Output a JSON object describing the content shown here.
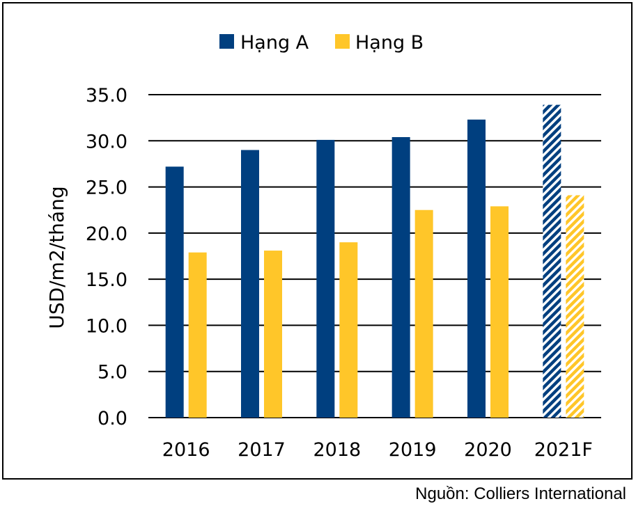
{
  "chart_data": {
    "type": "bar",
    "categories": [
      "2016",
      "2017",
      "2018",
      "2019",
      "2020",
      "2021F"
    ],
    "forecast_categories": [
      "2021F"
    ],
    "series": [
      {
        "name": "Hạng A",
        "color": "#003f7f",
        "values": [
          27.2,
          29.0,
          30.1,
          30.4,
          32.3,
          33.9
        ]
      },
      {
        "name": "Hạng B",
        "color": "#ffc629",
        "values": [
          17.9,
          18.1,
          19.0,
          22.5,
          22.9,
          24.1
        ]
      }
    ],
    "ylabel": "USD/m2/tháng",
    "ylim": [
      0,
      35
    ],
    "yticks": [
      "0.0",
      "5.0",
      "10.0",
      "15.0",
      "20.0",
      "25.0",
      "30.0",
      "35.0"
    ],
    "grid": true,
    "legend_position": "top-center"
  },
  "source_note": "Nguồn: Colliers International"
}
